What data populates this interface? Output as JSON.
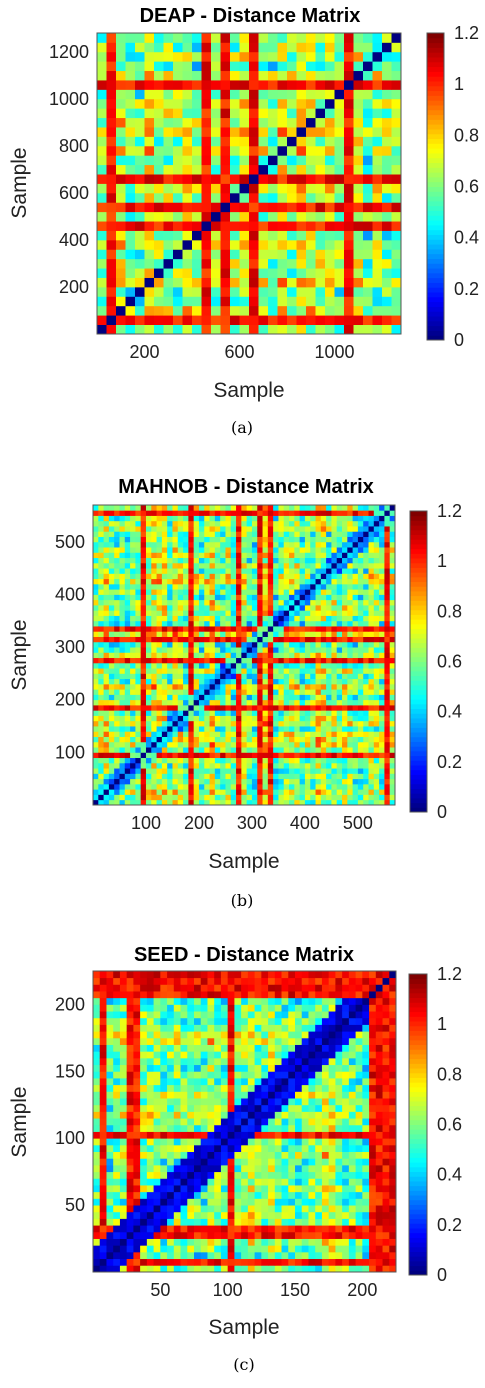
{
  "chart_data": [
    {
      "type": "heatmap",
      "title": "DEAP - Distance Matrix",
      "xlabel": "Sample",
      "ylabel": "Sample",
      "caption": "(a)",
      "x_ticks": [
        200,
        600,
        1000
      ],
      "y_ticks": [
        200,
        400,
        600,
        800,
        1000,
        1200
      ],
      "xlim": [
        0,
        1280
      ],
      "ylim": [
        0,
        1280
      ],
      "n_samples": 1280,
      "block_size": 40,
      "colorbar": {
        "range": [
          0,
          1.2
        ],
        "ticks": [
          0,
          0.2,
          0.4,
          0.6,
          0.8,
          1,
          1.2
        ],
        "tick_labels": [
          "0",
          "0.2",
          "0.4",
          "0.6",
          "0.8",
          "1",
          "1.2"
        ],
        "colormap": "jet"
      },
      "diagonal_value": 0,
      "typical_off_diagonal_range": [
        0.4,
        1.1
      ]
    },
    {
      "type": "heatmap",
      "title": "MAHNOB - Distance Matrix",
      "xlabel": "Sample",
      "ylabel": "Sample",
      "caption": "(b)",
      "x_ticks": [
        100,
        200,
        300,
        400,
        500
      ],
      "y_ticks": [
        100,
        200,
        300,
        400,
        500
      ],
      "xlim": [
        0,
        570
      ],
      "ylim": [
        0,
        570
      ],
      "n_samples": 570,
      "colorbar": {
        "range": [
          0,
          1.2
        ],
        "ticks": [
          0,
          0.2,
          0.4,
          0.6,
          0.8,
          1,
          1.2
        ],
        "tick_labels": [
          "0",
          "0.2",
          "0.4",
          "0.6",
          "0.8",
          "1",
          "1.2"
        ],
        "colormap": "jet"
      },
      "diagonal_value": 0,
      "typical_off_diagonal_range": [
        0.4,
        1.1
      ]
    },
    {
      "type": "heatmap",
      "title": "SEED - Distance Matrix",
      "xlabel": "Sample",
      "ylabel": "Sample",
      "caption": "(c)",
      "x_ticks": [
        50,
        100,
        150,
        200
      ],
      "y_ticks": [
        50,
        100,
        150,
        200
      ],
      "xlim": [
        0,
        225
      ],
      "ylim": [
        0,
        225
      ],
      "n_samples": 225,
      "colorbar": {
        "range": [
          0,
          1.2
        ],
        "ticks": [
          0,
          0.2,
          0.4,
          0.6,
          0.8,
          1,
          1.2
        ],
        "tick_labels": [
          "0",
          "0.2",
          "0.4",
          "0.6",
          "0.8",
          "1",
          "1.2"
        ],
        "colormap": "jet"
      },
      "diagonal_value": 0,
      "typical_off_diagonal_range": [
        0.2,
        0.9
      ]
    }
  ]
}
